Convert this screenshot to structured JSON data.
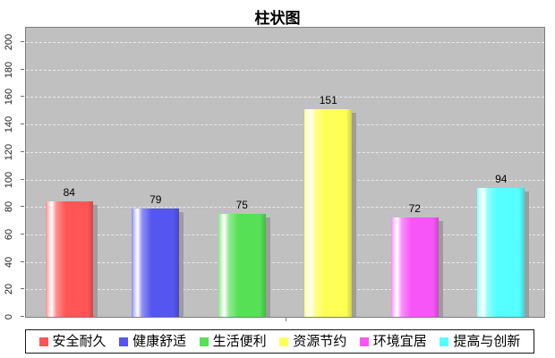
{
  "window": {
    "background": "#ffffff",
    "plot_background": "#c0c0c0",
    "shadow_color": "#9d9d9d",
    "gridline_color": "#eaeaea"
  },
  "chart_data": {
    "type": "bar",
    "title": "柱状图",
    "categories": [
      "安全耐久",
      "健康舒适",
      "生活便利",
      "资源节约",
      "环境宜居",
      "提高与创新"
    ],
    "values": [
      84,
      79,
      75,
      151,
      72,
      94
    ],
    "value_labels": [
      "84",
      "79",
      "75",
      "151",
      "72",
      "94"
    ],
    "colors": [
      "#ff5555",
      "#5555f0",
      "#55e055",
      "#ffff55",
      "#f855f8",
      "#55ffff"
    ],
    "xlabel": "",
    "ylabel": "",
    "ylim": [
      0,
      200
    ],
    "ytick_step": 20,
    "ytick_labels": [
      "0",
      "20",
      "40",
      "60",
      "80",
      "100",
      "120",
      "140",
      "160",
      "180",
      "200"
    ],
    "grid": "horizontal-dashed",
    "legend_position": "bottom",
    "bar_style": "glossy-cylinder-with-shadow"
  }
}
